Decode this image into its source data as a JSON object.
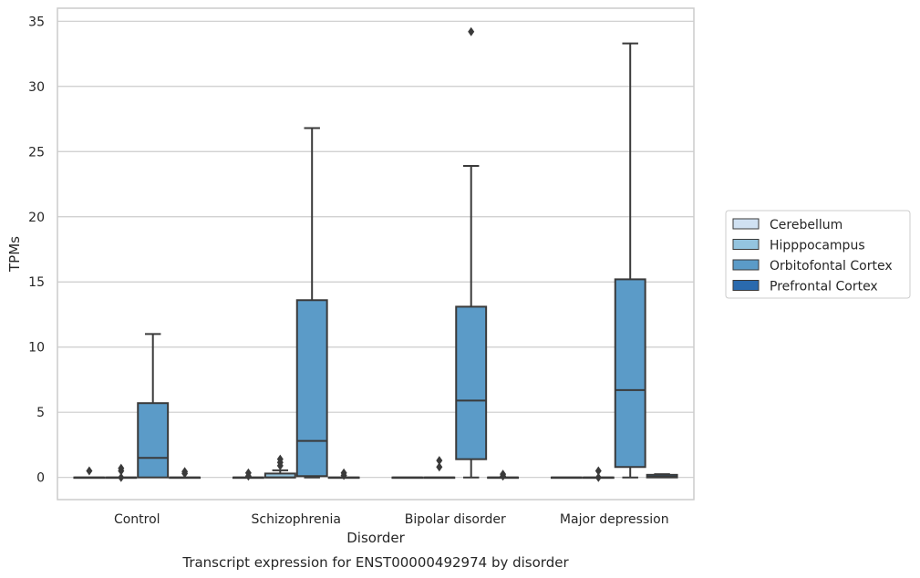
{
  "chart_data": {
    "type": "boxplot",
    "title": "",
    "caption": "Transcript expression for ENST00000492974 by disorder",
    "xlabel": "Disorder",
    "ylabel": "TPMs",
    "ylim": [
      -1.7,
      36
    ],
    "yticks": [
      0,
      5,
      10,
      15,
      20,
      25,
      30,
      35
    ],
    "grid": "horizontal",
    "legend_placement": "center-right",
    "categories": [
      "Control",
      "Schizophrenia",
      "Bipolar disorder",
      "Major depression"
    ],
    "series": [
      {
        "name": "Cerebellum",
        "color": "#d0e1f2",
        "boxes": [
          {
            "q1": 0,
            "median": 0,
            "q3": 0,
            "whislo": 0,
            "whishi": 0,
            "fliers": [
              0.5
            ]
          },
          {
            "q1": 0,
            "median": 0,
            "q3": 0,
            "whislo": 0,
            "whishi": 0,
            "fliers": [
              0.1,
              0.35
            ]
          },
          {
            "q1": 0,
            "median": 0,
            "q3": 0,
            "whislo": 0,
            "whishi": 0,
            "fliers": []
          },
          {
            "q1": 0,
            "median": 0,
            "q3": 0,
            "whislo": 0,
            "whishi": 0,
            "fliers": []
          }
        ]
      },
      {
        "name": "Hipppocampus",
        "color": "#94c4df",
        "boxes": [
          {
            "q1": 0,
            "median": 0,
            "q3": 0,
            "whislo": 0,
            "whishi": 0,
            "fliers": [
              0.0,
              0.5,
              0.7
            ]
          },
          {
            "q1": 0,
            "median": 0,
            "q3": 0.3,
            "whislo": 0,
            "whishi": 0.55,
            "fliers": [
              0.9,
              1.15,
              1.4
            ]
          },
          {
            "q1": 0,
            "median": 0,
            "q3": 0,
            "whislo": 0,
            "whishi": 0,
            "fliers": [
              0.8,
              1.3
            ]
          },
          {
            "q1": 0,
            "median": 0,
            "q3": 0,
            "whislo": 0,
            "whishi": 0,
            "fliers": [
              0.0,
              0.5
            ]
          }
        ]
      },
      {
        "name": "Orbitofontal Cortex",
        "color": "#5b9bc8",
        "boxes": [
          {
            "q1": 0,
            "median": 1.5,
            "q3": 5.7,
            "whislo": 0,
            "whishi": 11.0,
            "fliers": []
          },
          {
            "q1": 0.1,
            "median": 2.8,
            "q3": 13.6,
            "whislo": 0,
            "whishi": 26.8,
            "fliers": []
          },
          {
            "q1": 1.4,
            "median": 5.9,
            "q3": 13.1,
            "whislo": 0,
            "whishi": 23.9,
            "fliers": [
              34.2
            ]
          },
          {
            "q1": 0.8,
            "median": 6.7,
            "q3": 15.2,
            "whislo": 0,
            "whishi": 33.3,
            "fliers": []
          }
        ]
      },
      {
        "name": "Prefrontal Cortex",
        "color": "#2a6aae",
        "boxes": [
          {
            "q1": 0,
            "median": 0,
            "q3": 0,
            "whislo": 0,
            "whishi": 0,
            "fliers": [
              0.3,
              0.45
            ]
          },
          {
            "q1": 0,
            "median": 0,
            "q3": 0,
            "whislo": 0,
            "whishi": 0,
            "fliers": [
              0.15,
              0.35
            ]
          },
          {
            "q1": 0,
            "median": 0,
            "q3": 0,
            "whislo": 0,
            "whishi": 0,
            "fliers": [
              0.1,
              0.25
            ]
          },
          {
            "q1": 0,
            "median": 0.05,
            "q3": 0.2,
            "whislo": 0,
            "whishi": 0.25,
            "fliers": []
          }
        ]
      }
    ]
  }
}
